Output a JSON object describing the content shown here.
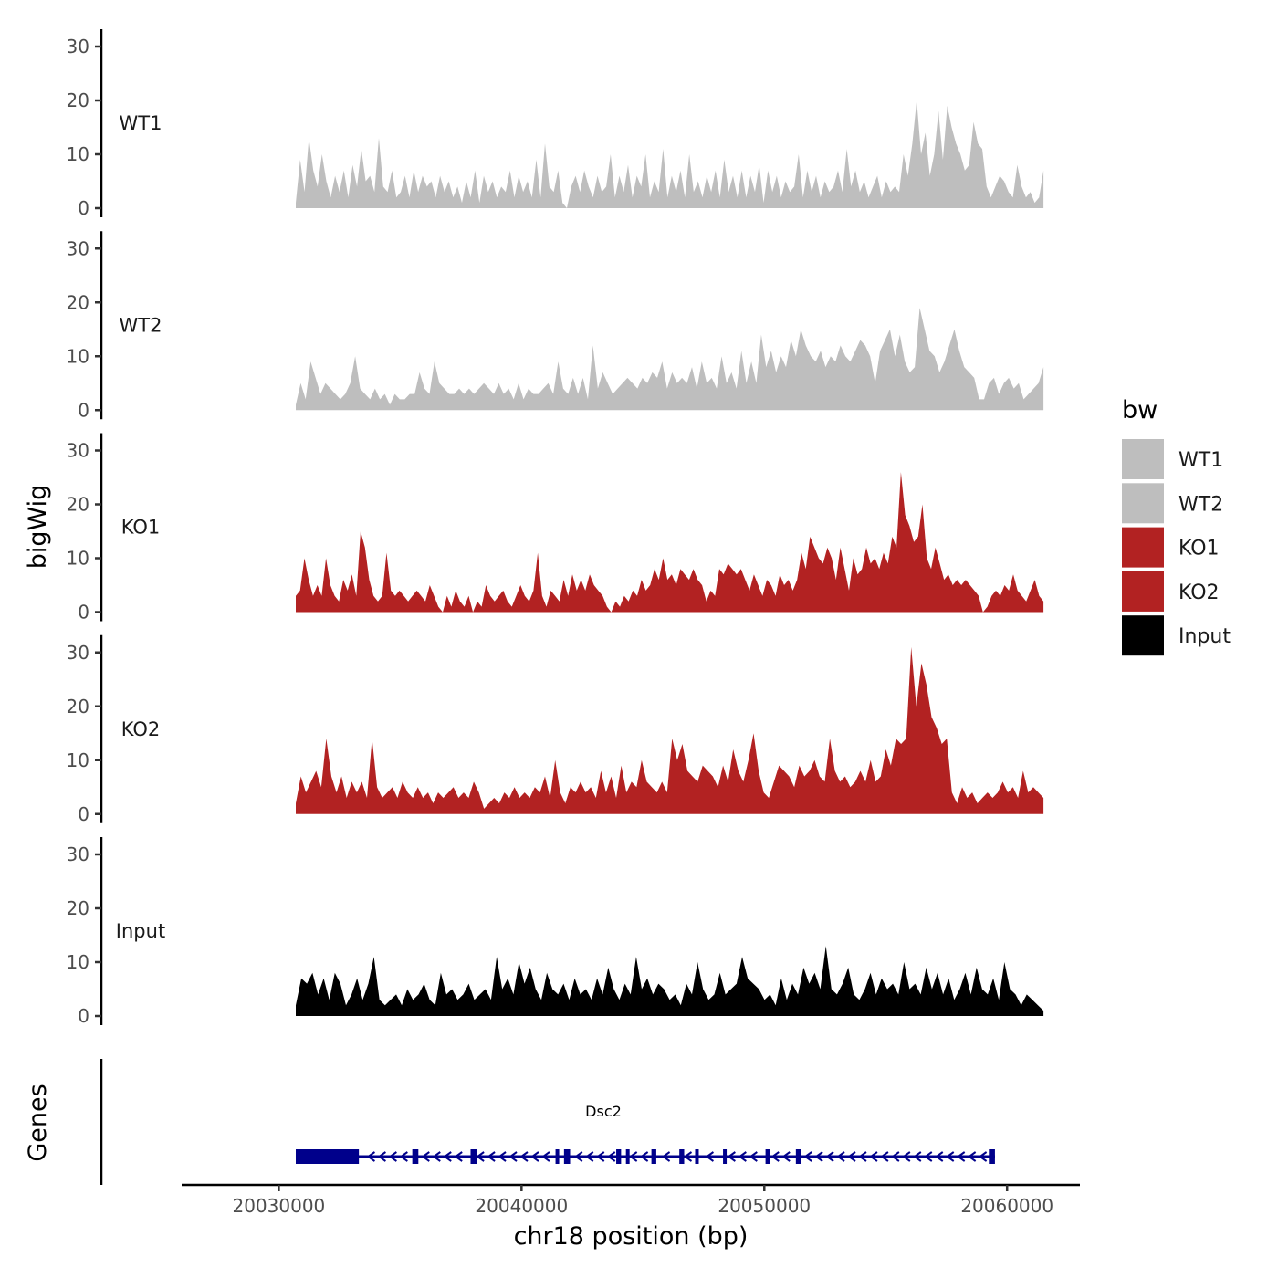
{
  "chart_data": {
    "type": "area",
    "chromosome": "chr18",
    "xlabel": "chr18 position (bp)",
    "ylabel": "bigWig",
    "xlim": [
      20026000,
      20063000
    ],
    "x_ticks": [
      20030000,
      20040000,
      20050000,
      20060000
    ],
    "x_tick_labels": [
      "20030000",
      "20040000",
      "20050000",
      "20060000"
    ],
    "data_range": [
      20030700,
      20061500
    ],
    "ylim": [
      0,
      30
    ],
    "y_ticks": [
      0,
      10,
      20,
      30
    ],
    "y_tick_labels": [
      "0",
      "10",
      "20",
      "30"
    ],
    "legend": {
      "title": "bw",
      "position": "right",
      "entries": [
        {
          "label": "WT1",
          "color": "#bebebe"
        },
        {
          "label": "WT2",
          "color": "#bebebe"
        },
        {
          "label": "KO1",
          "color": "#b22222"
        },
        {
          "label": "KO2",
          "color": "#b22222"
        },
        {
          "label": "Input",
          "color": "#000000"
        }
      ]
    },
    "series": [
      {
        "name": "WT1",
        "label": "WT1",
        "color": "#bebebe",
        "values": [
          1,
          9,
          3,
          13,
          7,
          4,
          10,
          5,
          2,
          6,
          3,
          7,
          2,
          8,
          4,
          11,
          5,
          6,
          3,
          13,
          4,
          3,
          7,
          2,
          3,
          6,
          2,
          7,
          3,
          6,
          4,
          5,
          2,
          6,
          3,
          5,
          2,
          4,
          1,
          5,
          2,
          7,
          1,
          6,
          3,
          5,
          2,
          4,
          3,
          7,
          2,
          6,
          3,
          5,
          2,
          9,
          2,
          12,
          4,
          3,
          7,
          1,
          0,
          4,
          6,
          3,
          7,
          4,
          2,
          6,
          3,
          4,
          10,
          2,
          6,
          3,
          8,
          2,
          6,
          4,
          10,
          2,
          5,
          3,
          11,
          2,
          6,
          3,
          7,
          2,
          10,
          3,
          5,
          2,
          6,
          3,
          7,
          2,
          9,
          3,
          6,
          2,
          7,
          2,
          6,
          3,
          8,
          1,
          7,
          3,
          6,
          2,
          5,
          3,
          4,
          10,
          2,
          7,
          3,
          6,
          2,
          5,
          3,
          4,
          7,
          3,
          11,
          4,
          7,
          3,
          5,
          2,
          4,
          6,
          2,
          5,
          3,
          4,
          3,
          10,
          6,
          12,
          20,
          10,
          14,
          6,
          10,
          18,
          9,
          19,
          15,
          12,
          10,
          7,
          8,
          16,
          12,
          11,
          4,
          2,
          4,
          6,
          5,
          3,
          2,
          8,
          4,
          2,
          3,
          1,
          2,
          7
        ]
      },
      {
        "name": "WT2",
        "label": "WT2",
        "color": "#bebebe",
        "values": [
          1,
          5,
          2,
          9,
          6,
          3,
          5,
          4,
          3,
          2,
          3,
          5,
          10,
          4,
          3,
          2,
          4,
          2,
          3,
          1,
          3,
          2,
          2,
          3,
          3,
          7,
          4,
          3,
          9,
          5,
          4,
          3,
          3,
          4,
          3,
          4,
          3,
          4,
          5,
          4,
          3,
          5,
          3,
          4,
          2,
          5,
          2,
          4,
          3,
          3,
          4,
          5,
          3,
          9,
          4,
          3,
          6,
          3,
          6,
          2,
          12,
          4,
          7,
          5,
          3,
          4,
          5,
          6,
          5,
          4,
          6,
          5,
          7,
          6,
          9,
          4,
          7,
          5,
          6,
          5,
          8,
          4,
          9,
          5,
          6,
          4,
          10,
          5,
          7,
          4,
          11,
          5,
          9,
          5,
          14,
          8,
          11,
          7,
          10,
          8,
          13,
          10,
          15,
          12,
          10,
          9,
          11,
          8,
          10,
          9,
          12,
          10,
          9,
          11,
          13,
          12,
          10,
          5,
          11,
          13,
          15,
          10,
          14,
          9,
          7,
          8,
          19,
          15,
          11,
          10,
          7,
          9,
          12,
          15,
          11,
          8,
          7,
          6,
          2,
          2,
          5,
          6,
          3,
          5,
          6,
          4,
          5,
          2,
          3,
          4,
          5,
          8
        ]
      },
      {
        "name": "KO1",
        "label": "KO1",
        "color": "#b22222",
        "values": [
          3,
          4,
          10,
          6,
          3,
          5,
          3,
          10,
          5,
          3,
          2,
          6,
          4,
          7,
          3,
          15,
          12,
          6,
          3,
          2,
          3,
          11,
          4,
          3,
          4,
          3,
          2,
          3,
          4,
          3,
          2,
          5,
          3,
          1,
          0,
          3,
          1,
          4,
          2,
          1,
          3,
          0,
          2,
          1,
          5,
          3,
          2,
          3,
          4,
          2,
          1,
          3,
          5,
          3,
          2,
          4,
          11,
          3,
          1,
          4,
          3,
          2,
          6,
          3,
          7,
          4,
          6,
          4,
          7,
          5,
          4,
          3,
          1,
          0,
          2,
          1,
          3,
          2,
          4,
          3,
          6,
          4,
          5,
          8,
          6,
          10,
          6,
          7,
          5,
          8,
          7,
          6,
          8,
          6,
          5,
          2,
          4,
          3,
          8,
          7,
          9,
          8,
          7,
          8,
          6,
          4,
          7,
          5,
          3,
          6,
          5,
          3,
          7,
          5,
          6,
          4,
          6,
          11,
          8,
          14,
          12,
          10,
          9,
          12,
          10,
          6,
          12,
          8,
          4,
          10,
          7,
          8,
          12,
          9,
          10,
          8,
          11,
          9,
          14,
          12,
          26,
          18,
          16,
          13,
          14,
          20,
          10,
          8,
          12,
          9,
          6,
          7,
          5,
          6,
          5,
          6,
          5,
          4,
          3,
          0,
          1,
          3,
          4,
          3,
          5,
          4,
          7,
          4,
          3,
          2,
          4,
          6,
          3,
          2
        ]
      },
      {
        "name": "KO2",
        "label": "KO2",
        "color": "#b22222",
        "values": [
          2,
          7,
          4,
          6,
          8,
          5,
          14,
          7,
          4,
          7,
          3,
          6,
          4,
          6,
          3,
          14,
          5,
          3,
          4,
          5,
          3,
          6,
          4,
          3,
          5,
          3,
          4,
          2,
          4,
          3,
          4,
          5,
          3,
          4,
          3,
          6,
          4,
          1,
          2,
          3,
          2,
          4,
          3,
          5,
          3,
          4,
          3,
          5,
          4,
          7,
          3,
          10,
          4,
          2,
          5,
          4,
          6,
          4,
          5,
          3,
          8,
          4,
          7,
          3,
          9,
          4,
          6,
          5,
          10,
          6,
          5,
          4,
          6,
          4,
          14,
          10,
          13,
          8,
          7,
          6,
          9,
          8,
          7,
          5,
          9,
          6,
          12,
          8,
          6,
          10,
          15,
          8,
          4,
          3,
          6,
          9,
          8,
          7,
          5,
          9,
          7,
          8,
          10,
          7,
          6,
          14,
          8,
          6,
          7,
          5,
          6,
          8,
          6,
          10,
          6,
          7,
          12,
          9,
          14,
          13,
          14,
          31,
          20,
          28,
          24,
          18,
          16,
          13,
          14,
          4,
          2,
          5,
          3,
          4,
          2,
          3,
          4,
          3,
          4,
          6,
          4,
          5,
          3,
          8,
          4,
          5,
          4,
          3
        ]
      },
      {
        "name": "Input",
        "label": "Input",
        "color": "#000000",
        "values": [
          2,
          7,
          6,
          8,
          4,
          7,
          3,
          8,
          6,
          2,
          4,
          7,
          3,
          6,
          11,
          3,
          2,
          3,
          4,
          2,
          5,
          3,
          4,
          6,
          3,
          2,
          8,
          4,
          5,
          3,
          4,
          6,
          3,
          4,
          5,
          3,
          11,
          5,
          7,
          4,
          10,
          6,
          9,
          5,
          3,
          8,
          5,
          4,
          6,
          3,
          7,
          4,
          5,
          3,
          7,
          4,
          9,
          5,
          3,
          6,
          4,
          11,
          5,
          7,
          4,
          6,
          5,
          3,
          4,
          2,
          6,
          4,
          10,
          5,
          3,
          4,
          8,
          4,
          5,
          6,
          11,
          7,
          6,
          5,
          3,
          4,
          2,
          7,
          3,
          6,
          4,
          9,
          6,
          8,
          5,
          13,
          5,
          4,
          6,
          9,
          4,
          3,
          5,
          8,
          4,
          7,
          5,
          6,
          4,
          10,
          5,
          6,
          4,
          9,
          5,
          8,
          4,
          7,
          3,
          5,
          8,
          4,
          9,
          5,
          4,
          7,
          3,
          10,
          5,
          4,
          2,
          4,
          3,
          2,
          1
        ]
      }
    ],
    "gene_track": {
      "label": "Genes",
      "gene_name": "Dsc2",
      "color": "#00008b",
      "strand": "-",
      "start": 20030700,
      "end": 20059500,
      "exons": [
        [
          20030700,
          20033300
        ],
        [
          20035500,
          20035750
        ],
        [
          20037900,
          20038150
        ],
        [
          20041400,
          20041550
        ],
        [
          20041750,
          20042000
        ],
        [
          20043900,
          20044100
        ],
        [
          20044300,
          20044450
        ],
        [
          20045350,
          20045550
        ],
        [
          20046500,
          20046700
        ],
        [
          20047150,
          20047300
        ],
        [
          20048300,
          20048450
        ],
        [
          20050050,
          20050250
        ],
        [
          20051300,
          20051500
        ],
        [
          20059250,
          20059500
        ]
      ]
    }
  }
}
